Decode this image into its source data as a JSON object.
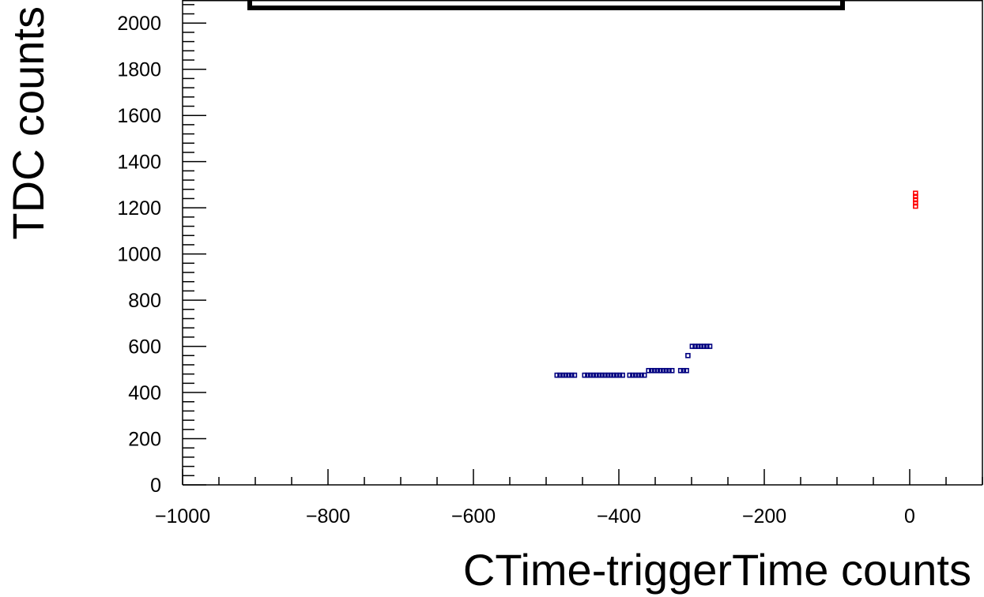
{
  "chart_data": {
    "type": "scatter",
    "title": "",
    "xlabel": "CTime-triggerTime counts",
    "ylabel": "TDC counts",
    "xlim": [
      -1000,
      100
    ],
    "ylim": [
      0,
      2100
    ],
    "x_ticks": [
      -1000,
      -800,
      -600,
      -400,
      -200,
      0
    ],
    "y_ticks": [
      0,
      200,
      400,
      600,
      800,
      1000,
      1200,
      1400,
      1600,
      1800,
      2000
    ],
    "x_tick_labels": [
      "−1000",
      "−800",
      "−600",
      "−400",
      "−200",
      "0"
    ],
    "y_tick_labels": [
      "0",
      "200",
      "400",
      "600",
      "800",
      "1000",
      "1200",
      "1400",
      "1600",
      "1800",
      "2000"
    ],
    "grid": false,
    "legend": "none",
    "marker": "open-square",
    "series": [
      {
        "color": "#000080",
        "x": [
          -485,
          -481,
          -477,
          -473,
          -469,
          -465,
          -461,
          -447,
          -443,
          -439,
          -435,
          -431,
          -427,
          -423,
          -419,
          -415,
          -411,
          -407,
          -403,
          -399,
          -395,
          -385,
          -381,
          -377,
          -373,
          -369,
          -365,
          -359,
          -355,
          -351,
          -347,
          -343,
          -339,
          -335,
          -331,
          -327,
          -315,
          -311,
          -307,
          -305,
          -299,
          -295,
          -291,
          -287,
          -283,
          -279,
          -275
        ],
        "y": [
          475,
          475,
          475,
          475,
          475,
          475,
          475,
          475,
          475,
          475,
          475,
          475,
          475,
          475,
          475,
          475,
          475,
          475,
          475,
          475,
          475,
          475,
          475,
          475,
          475,
          475,
          475,
          495,
          495,
          495,
          495,
          495,
          495,
          495,
          495,
          495,
          495,
          495,
          495,
          560,
          600,
          600,
          600,
          600,
          600,
          600,
          600
        ]
      },
      {
        "color": "#ff0000",
        "x": [
          8,
          8,
          8,
          8,
          8
        ],
        "y": [
          1207,
          1221,
          1235,
          1249,
          1263
        ]
      }
    ]
  }
}
